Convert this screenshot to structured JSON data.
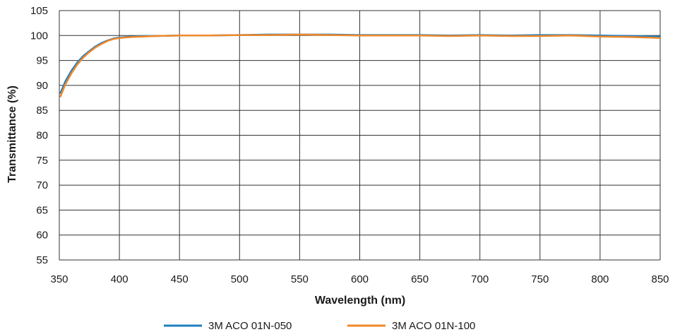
{
  "chart_data": {
    "type": "line",
    "title": "",
    "xlabel": "Wavelength (nm)",
    "ylabel": "Transmittance (%)",
    "xlim": [
      350,
      850
    ],
    "ylim": [
      55,
      105
    ],
    "xticks": [
      350,
      400,
      450,
      500,
      550,
      600,
      650,
      700,
      750,
      800,
      850
    ],
    "yticks": [
      55,
      60,
      65,
      70,
      75,
      80,
      85,
      90,
      95,
      100,
      105
    ],
    "grid": true,
    "legend_position": "bottom",
    "series": [
      {
        "name": "3M ACO 01N-050",
        "color": "#1f7fbf",
        "x": [
          351,
          355,
          360,
          365,
          370,
          375,
          380,
          385,
          390,
          395,
          400,
          410,
          420,
          430,
          450,
          475,
          500,
          525,
          550,
          575,
          600,
          625,
          650,
          675,
          700,
          725,
          750,
          775,
          800,
          825,
          850
        ],
        "y": [
          88.5,
          90.8,
          92.9,
          94.6,
          95.9,
          96.9,
          97.8,
          98.5,
          99.0,
          99.4,
          99.6,
          99.8,
          99.9,
          99.9,
          100.0,
          100.0,
          100.1,
          100.2,
          100.2,
          100.2,
          100.1,
          100.1,
          100.1,
          100.0,
          100.1,
          100.0,
          100.1,
          100.1,
          100.0,
          99.9,
          99.8
        ]
      },
      {
        "name": "3M ACO 01N-100",
        "color": "#f0882a",
        "x": [
          351,
          355,
          360,
          365,
          370,
          375,
          380,
          385,
          390,
          395,
          400,
          410,
          420,
          430,
          450,
          475,
          500,
          525,
          550,
          575,
          600,
          625,
          650,
          675,
          700,
          725,
          750,
          775,
          800,
          825,
          850
        ],
        "y": [
          87.8,
          90.2,
          92.4,
          94.2,
          95.6,
          96.7,
          97.6,
          98.3,
          98.9,
          99.3,
          99.5,
          99.7,
          99.8,
          99.9,
          100.0,
          100.0,
          100.1,
          100.1,
          100.2,
          100.1,
          100.0,
          100.0,
          100.0,
          99.9,
          100.0,
          99.9,
          99.9,
          100.0,
          99.8,
          99.7,
          99.5
        ]
      }
    ]
  }
}
